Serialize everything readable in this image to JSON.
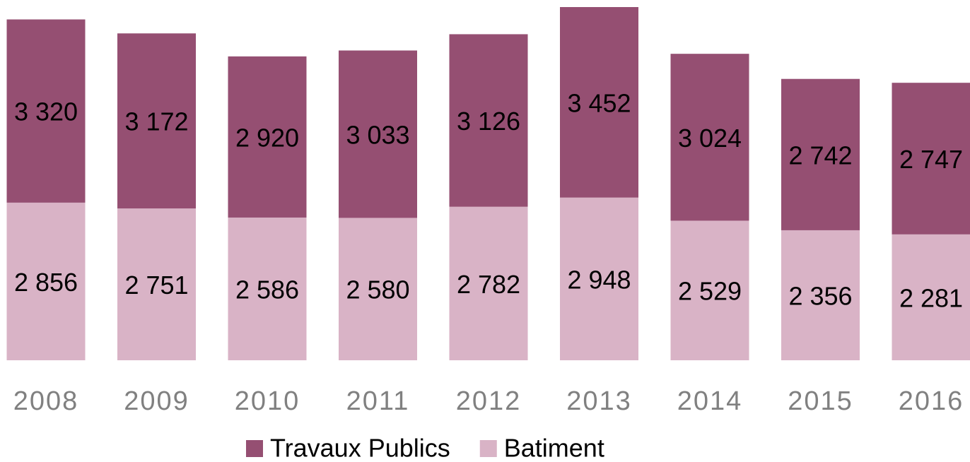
{
  "chart_data": {
    "type": "stacked_bar",
    "categories": [
      "2008",
      "2009",
      "2010",
      "2011",
      "2012",
      "2013",
      "2014",
      "2015",
      "2016"
    ],
    "series": [
      {
        "name": "Batiment",
        "color": "#d9b3c6",
        "values": [
          2856,
          2751,
          2586,
          2580,
          2782,
          2948,
          2529,
          2356,
          2281
        ],
        "value_labels": [
          "2 856",
          "2 751",
          "2 586",
          "2 580",
          "2 782",
          "2 948",
          "2 529",
          "2 356",
          "2 281"
        ]
      },
      {
        "name": "Travaux Publics",
        "color": "#954f72",
        "values": [
          3320,
          3172,
          2920,
          3033,
          3126,
          3452,
          3024,
          2742,
          2747
        ],
        "value_labels": [
          "3 320",
          "3 172",
          "2 920",
          "3 033",
          "3 126",
          "3 452",
          "3 024",
          "2 742",
          "2 747"
        ]
      }
    ],
    "legend_position": "bottom"
  }
}
